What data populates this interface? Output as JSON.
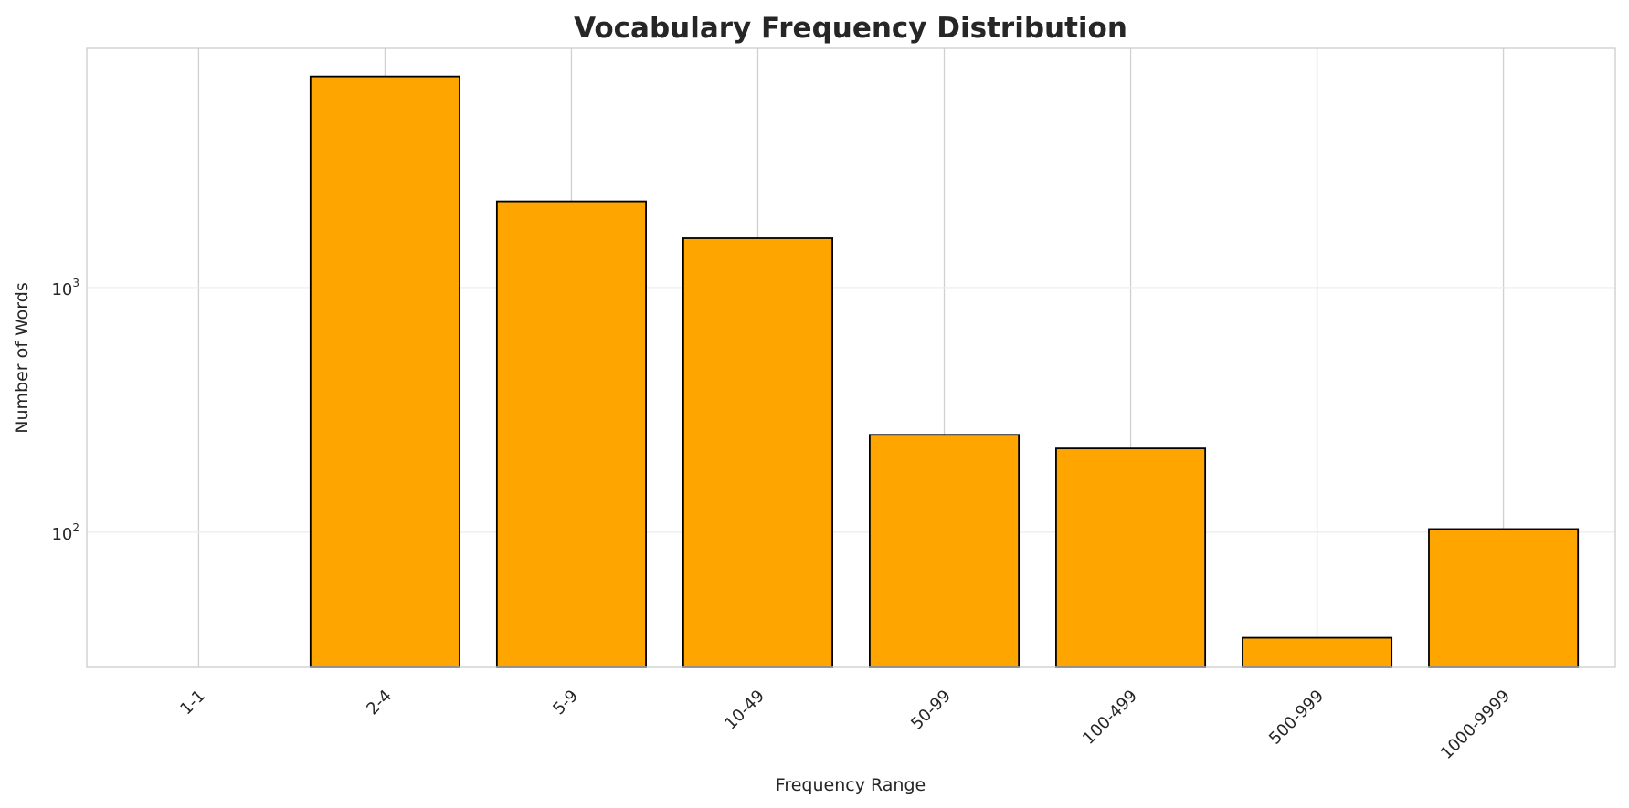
{
  "chart_data": {
    "type": "bar",
    "title": "Vocabulary Frequency Distribution",
    "xlabel": "Frequency Range",
    "ylabel": "Number of Words",
    "categories": [
      "1-1",
      "2-4",
      "5-9",
      "10-49",
      "50-99",
      "100-499",
      "500-999",
      "1000-9999"
    ],
    "values": [
      0,
      7300,
      2250,
      1590,
      250,
      220,
      37,
      103
    ],
    "yscale": "log",
    "ylim": [
      28,
      9500
    ],
    "yticks": [
      {
        "value": 100,
        "base": "10",
        "exp": "2"
      },
      {
        "value": 1000,
        "base": "10",
        "exp": "3"
      }
    ],
    "grid": true,
    "bar_color": "#FFA500",
    "edge_color": "#000000"
  }
}
